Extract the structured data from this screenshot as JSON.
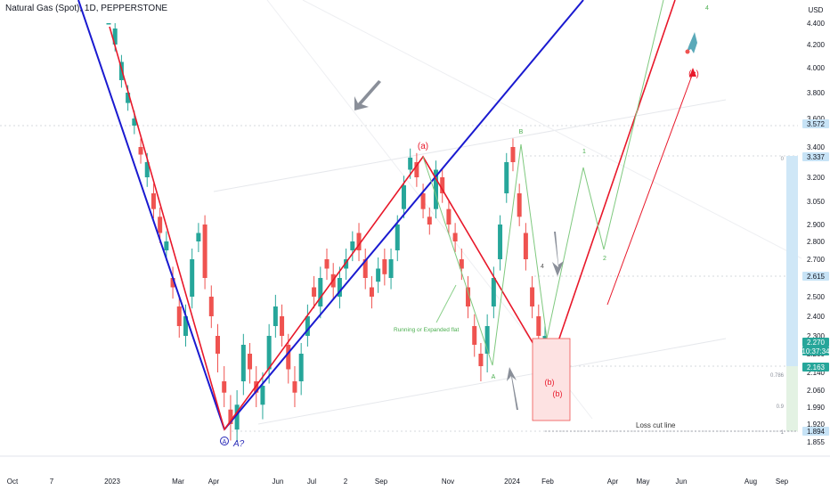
{
  "header": {
    "title": "Natural Gas (Spot), 1D, PEPPERSTONE"
  },
  "currency": "USD",
  "colors": {
    "up": "#26a69a",
    "down": "#ef5350",
    "blue_line": "#1a1ad0",
    "red_line": "#e8182a",
    "green_path": "#7fc97f",
    "box_fill": "#fde2e2",
    "box_stroke": "#ef5350",
    "position_fill": "#cfe7f7",
    "arrow_gray": "#8a8f99"
  },
  "chart_data": {
    "type": "candlestick",
    "y_ticks": [
      "4.400",
      "4.200",
      "4.000",
      "3.800",
      "3.600",
      "3.400",
      "3.200",
      "3.050",
      "2.900",
      "2.800",
      "2.700",
      "2.600",
      "2.500",
      "2.400",
      "2.300",
      "2.200",
      "2.140",
      "2.060",
      "1.990",
      "1.920",
      "1.855"
    ],
    "x_ticks": [
      "Oct",
      "7",
      "2023",
      "Mar",
      "Apr",
      "Jun",
      "Jul",
      "2",
      "Sep",
      "Nov",
      "2024",
      "Feb",
      "Apr",
      "May",
      "Jun",
      "Aug",
      "Sep"
    ],
    "price_tags": [
      {
        "label": "3.572",
        "kind": "level"
      },
      {
        "label": "3.337",
        "kind": "level"
      },
      {
        "label": "2.615",
        "kind": "level"
      },
      {
        "label": "2.270",
        "kind": "current"
      },
      {
        "label": "10:37:34",
        "kind": "countdown"
      },
      {
        "label": "2.163",
        "kind": "stop"
      },
      {
        "label": "1.894",
        "kind": "level"
      }
    ],
    "fib_labels": [
      "0",
      "0.786",
      "0.9",
      "1"
    ],
    "wave_labels": [
      "(a)",
      "B",
      "A",
      "(b)",
      "(b)",
      "1",
      "2",
      "4",
      "4",
      "(c)",
      "A?"
    ],
    "wave_circle_label": "A",
    "annotations": [
      "Running or Expanded flat",
      "Loss cut line"
    ]
  }
}
